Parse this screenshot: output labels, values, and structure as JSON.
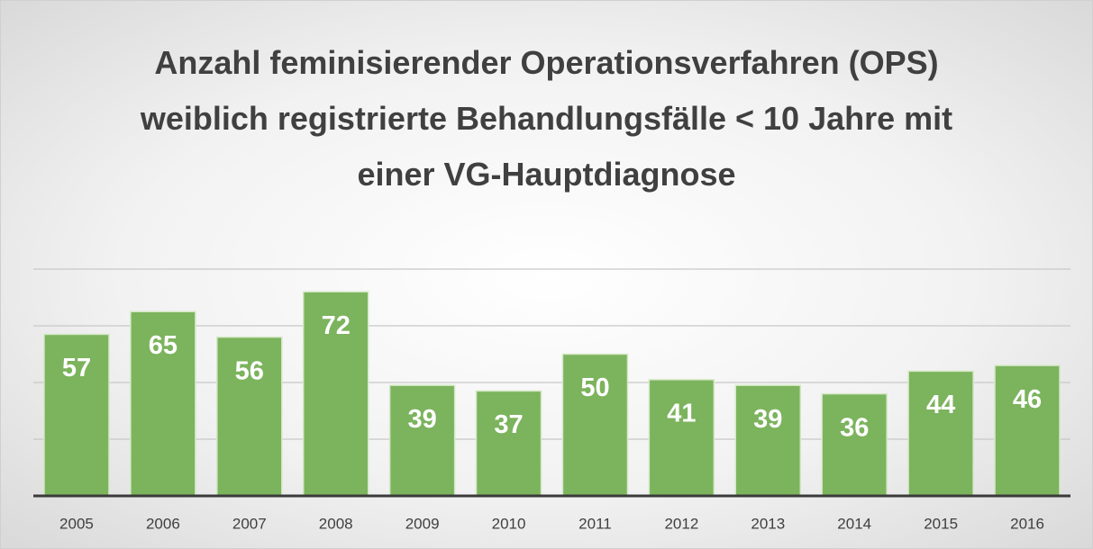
{
  "chart_data": {
    "type": "bar",
    "title": "Anzahl feminisierender Operationsverfahren (OPS) weiblich registrierte Behandlungsfälle < 10 Jahre mit einer VG-Hauptdiagnose",
    "categories": [
      "2005",
      "2006",
      "2007",
      "2008",
      "2009",
      "2010",
      "2011",
      "2012",
      "2013",
      "2014",
      "2015",
      "2016"
    ],
    "values": [
      57,
      65,
      56,
      72,
      39,
      37,
      50,
      41,
      39,
      36,
      44,
      46
    ],
    "color": "#7cb35d",
    "ylim": [
      0,
      80
    ],
    "yticks": [
      0,
      20,
      40,
      60,
      80
    ],
    "grid": true
  }
}
